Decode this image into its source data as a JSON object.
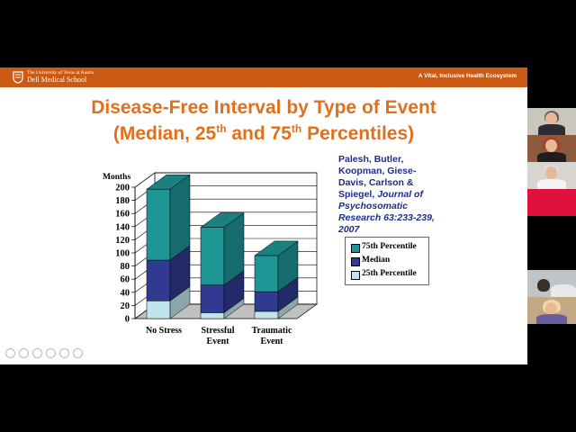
{
  "banner": {
    "university": "The University of Texas at Austin",
    "school": "Dell Medical School",
    "tagline": "A Vital, Inclusive Health Ecosystem"
  },
  "slide": {
    "title_line1": "Disease-Free Interval by Type of Event",
    "title_line2_prefix": "(Median, 25",
    "title_line2_sup1": "th",
    "title_line2_mid": " and 75",
    "title_line2_sup2": "th",
    "title_line2_suffix": " Percentiles)",
    "citation_authors": "Palesh, Butler, Koopman, Giese-Davis, Carlson & Spiegel,",
    "citation_journal": "Journal of Psychosomatic Research 63:233-239, 2007"
  },
  "chart_data": {
    "type": "bar",
    "stacked_3d": true,
    "ylabel": "Months",
    "ylim": [
      0,
      200
    ],
    "yticks": [
      0,
      20,
      40,
      60,
      80,
      100,
      120,
      140,
      160,
      180,
      200
    ],
    "categories": [
      [
        "No Stress"
      ],
      [
        "Stressful",
        "Event"
      ],
      [
        "Traumatic",
        "Event"
      ]
    ],
    "series": [
      {
        "name": "25th Percentile",
        "values": [
          27,
          9,
          11
        ],
        "color": "#bfe6ec"
      },
      {
        "name": "Median",
        "values": [
          89,
          51,
          41
        ],
        "color": "#303a90"
      },
      {
        "name": "75th Percentile",
        "values": [
          197,
          139,
          96
        ],
        "color": "#1f9696"
      }
    ],
    "legend": [
      "75th Percentile",
      "Median",
      "25th Percentile"
    ],
    "legend_colors": [
      "#1f9696",
      "#303a90",
      "#bfe6ec"
    ],
    "grid": true
  },
  "toolbar": {
    "icons": [
      "previous-icon",
      "next-icon",
      "pen-icon",
      "slides-icon",
      "zoom-icon",
      "more-icon"
    ]
  }
}
